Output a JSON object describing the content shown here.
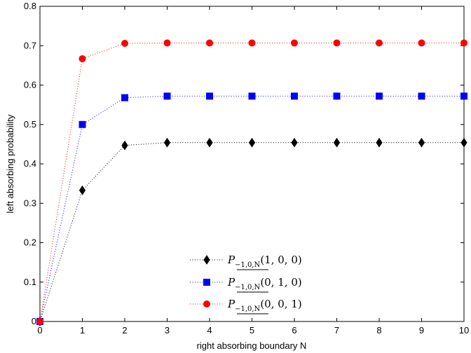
{
  "chart_data": {
    "type": "line",
    "title": "",
    "xlabel": "right absorbing boundary N",
    "ylabel": "left absorbing probability",
    "xlim": [
      0,
      10
    ],
    "ylim": [
      0,
      0.8
    ],
    "xticks": [
      0,
      1,
      2,
      3,
      4,
      5,
      6,
      7,
      8,
      9,
      10
    ],
    "yticks": [
      0,
      0.1,
      0.2,
      0.3,
      0.4,
      0.5,
      0.6,
      0.7,
      0.8
    ],
    "x": [
      0,
      1,
      2,
      3,
      4,
      5,
      6,
      7,
      8,
      9,
      10
    ],
    "legend_position": "bottom-center",
    "series": [
      {
        "name": "P_{-1,0,N}(1,0,0)",
        "legend": {
          "base": "P",
          "sub": "−1,0,N",
          "args": "(1, 0, 0)"
        },
        "color": "#000000",
        "marker": "diamond",
        "linestyle": "dotted",
        "values": [
          0,
          0.333,
          0.447,
          0.454,
          0.454,
          0.454,
          0.454,
          0.454,
          0.454,
          0.454,
          0.454
        ]
      },
      {
        "name": "P_{-1,0,N}(0,1,0)",
        "legend": {
          "base": "P",
          "sub": "−1,0,N",
          "args": "(0, 1, 0)"
        },
        "color": "#0000ff",
        "marker": "square",
        "linestyle": "dotted",
        "values": [
          0,
          0.5,
          0.568,
          0.572,
          0.572,
          0.572,
          0.572,
          0.572,
          0.572,
          0.572,
          0.572
        ]
      },
      {
        "name": "P_{-1,0,N}(0,0,1)",
        "legend": {
          "base": "P",
          "sub": "−1,0,N",
          "args": "(0, 0, 1)"
        },
        "color": "#ff0000",
        "marker": "circle",
        "linestyle": "dotted",
        "values": [
          0,
          0.667,
          0.706,
          0.707,
          0.707,
          0.707,
          0.707,
          0.707,
          0.707,
          0.707,
          0.707
        ]
      }
    ]
  }
}
